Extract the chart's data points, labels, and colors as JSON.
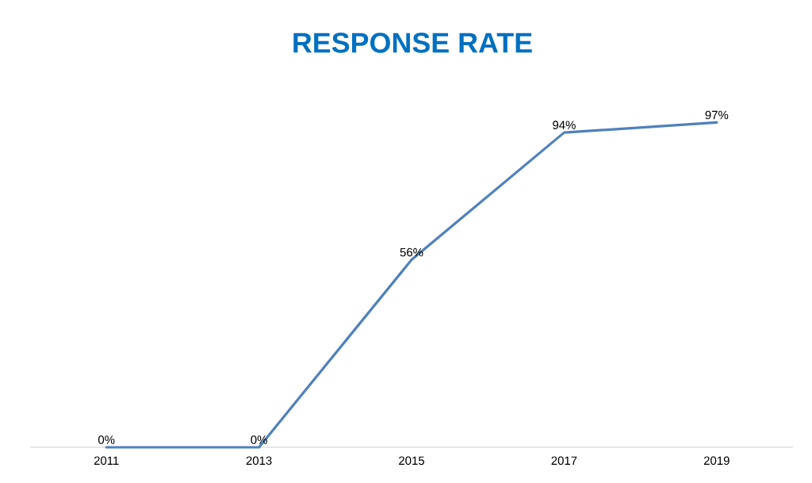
{
  "chart_data": {
    "type": "line",
    "title": "RESPONSE RATE",
    "categories": [
      "2011",
      "2013",
      "2015",
      "2017",
      "2019"
    ],
    "series": [
      {
        "color": "#4f81bd",
        "values": [
          0,
          0,
          56,
          94,
          97
        ],
        "value_labels": [
          "0%",
          "0%",
          "56%",
          "94%",
          "97%"
        ]
      }
    ],
    "line_style": "solid"
  }
}
